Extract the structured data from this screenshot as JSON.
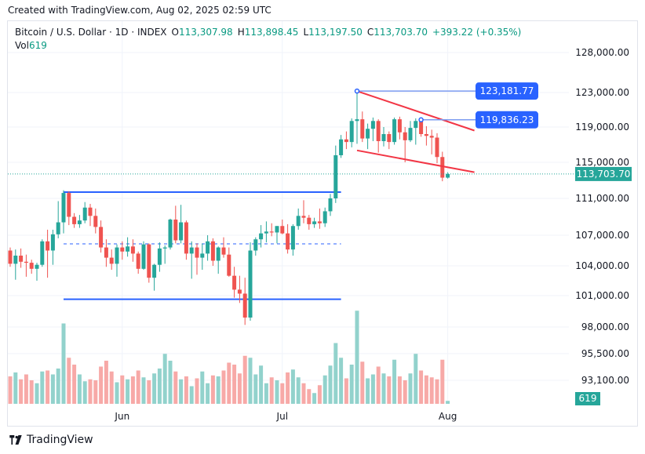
{
  "caption": "Created with TradingView.com, Aug 02, 2025 02:59 UTC",
  "legend": {
    "symbol": "Bitcoin / U.S. Dollar · 1D · INDEX",
    "open_label": "O",
    "open": "113,307.98",
    "high_label": "H",
    "high": "113,898.45",
    "low_label": "L",
    "low": "113,197.50",
    "close_label": "C",
    "close": "113,703.70",
    "change": "+393.22 (+0.35%)",
    "vol_label": "Vol",
    "vol": "619"
  },
  "brand": "TradingView",
  "colors": {
    "up": "#26a69a",
    "down": "#ef5350",
    "vol_up": "#92d2cc",
    "vol_down": "#f7a9a7",
    "trend": "#f23645",
    "level": "#2962ff",
    "callout": "#2962ff"
  },
  "chart_data": {
    "type": "candlestick",
    "y_ticks": [
      "128,000.00",
      "123,000.00",
      "119,000.00",
      "115,000.00",
      "111,000.00",
      "107,000.00",
      "104,000.00",
      "101,000.00",
      "98,000.00",
      "95,500.00",
      "93,100.00"
    ],
    "y_tick_values": [
      128000,
      123000,
      119000,
      115000,
      111000,
      107000,
      104000,
      101000,
      98000,
      95500,
      93100
    ],
    "x_labels": [
      {
        "label": "Jun",
        "index": 21
      },
      {
        "label": "Jul",
        "index": 51
      },
      {
        "label": "Aug",
        "index": 82
      }
    ],
    "last_price_label": "113,703.70",
    "last_price": 113703.7,
    "volume_label": "619",
    "candles": [
      [
        105500,
        105800,
        103900,
        104200
      ],
      [
        104200,
        105600,
        102600,
        105000
      ],
      [
        105000,
        105700,
        103800,
        104400
      ],
      [
        104400,
        105100,
        102900,
        104300
      ],
      [
        104300,
        104600,
        103200,
        103700
      ],
      [
        103700,
        104300,
        102500,
        104100
      ],
      [
        104100,
        106600,
        103900,
        106400
      ],
      [
        106400,
        107600,
        102800,
        105500
      ],
      [
        105500,
        107600,
        104100,
        107100
      ],
      [
        107100,
        110700,
        106700,
        108400
      ],
      [
        108400,
        111900,
        107200,
        111600
      ],
      [
        111600,
        111800,
        108100,
        109000
      ],
      [
        109000,
        109400,
        107800,
        108200
      ],
      [
        108200,
        109200,
        107800,
        108600
      ],
      [
        108600,
        110600,
        108300,
        110000
      ],
      [
        110000,
        110400,
        108000,
        109100
      ],
      [
        109100,
        109900,
        107200,
        107900
      ],
      [
        107900,
        108600,
        105300,
        105800
      ],
      [
        105800,
        106600,
        103900,
        104800
      ],
      [
        104800,
        105600,
        103600,
        104200
      ],
      [
        104200,
        106100,
        102900,
        105800
      ],
      [
        105800,
        106400,
        104600,
        105400
      ],
      [
        105400,
        106800,
        104900,
        105900
      ],
      [
        105900,
        106600,
        104400,
        105200
      ],
      [
        105200,
        105400,
        103200,
        103700
      ],
      [
        103700,
        106400,
        103600,
        106100
      ],
      [
        106100,
        106200,
        102300,
        102800
      ],
      [
        102800,
        104200,
        101500,
        104100
      ],
      [
        104100,
        106300,
        103400,
        105700
      ],
      [
        105700,
        106000,
        104200,
        105800
      ],
      [
        105800,
        108800,
        105600,
        108700
      ],
      [
        108700,
        110200,
        106200,
        106500
      ],
      [
        106500,
        110300,
        106200,
        108400
      ],
      [
        108400,
        108600,
        104600,
        105200
      ],
      [
        105200,
        106400,
        102700,
        105800
      ],
      [
        105800,
        106200,
        103100,
        104800
      ],
      [
        104800,
        106200,
        103600,
        105200
      ],
      [
        105200,
        107000,
        104500,
        106400
      ],
      [
        106400,
        106700,
        104000,
        104500
      ],
      [
        104500,
        105900,
        103200,
        105800
      ],
      [
        105800,
        106800,
        104800,
        105100
      ],
      [
        105100,
        105800,
        102900,
        103000
      ],
      [
        103000,
        103900,
        100800,
        101600
      ],
      [
        101600,
        103000,
        100300,
        101200
      ],
      [
        101200,
        102800,
        98200,
        98900
      ],
      [
        98900,
        106300,
        98600,
        105500
      ],
      [
        105500,
        106800,
        105000,
        106600
      ],
      [
        106600,
        108100,
        105800,
        107200
      ],
      [
        107200,
        108500,
        106300,
        107400
      ],
      [
        107400,
        108300,
        106900,
        107300
      ],
      [
        107300,
        108000,
        106200,
        108000
      ],
      [
        108000,
        108700,
        107100,
        107200
      ],
      [
        107200,
        108200,
        105200,
        105600
      ],
      [
        105600,
        108200,
        105000,
        108000
      ],
      [
        108000,
        109900,
        107600,
        109100
      ],
      [
        109100,
        110800,
        108300,
        108900
      ],
      [
        108900,
        109200,
        107600,
        108200
      ],
      [
        108200,
        108900,
        107800,
        108500
      ],
      [
        108500,
        109900,
        107700,
        108300
      ],
      [
        108300,
        110000,
        107900,
        109600
      ],
      [
        109600,
        111500,
        109100,
        111000
      ],
      [
        111000,
        116900,
        110500,
        115800
      ],
      [
        115800,
        118100,
        115500,
        117600
      ],
      [
        117600,
        118500,
        116500,
        117300
      ],
      [
        117300,
        120000,
        116700,
        119700
      ],
      [
        119700,
        123180,
        117100,
        119900
      ],
      [
        119900,
        120800,
        117300,
        117700
      ],
      [
        117700,
        119400,
        116500,
        118800
      ],
      [
        118800,
        120100,
        117400,
        119700
      ],
      [
        119700,
        119900,
        116100,
        117400
      ],
      [
        117400,
        119000,
        116800,
        118200
      ],
      [
        118200,
        118500,
        116500,
        117300
      ],
      [
        117300,
        120100,
        117000,
        119900
      ],
      [
        119900,
        120200,
        117600,
        118400
      ],
      [
        118400,
        119000,
        115000,
        117500
      ],
      [
        117500,
        119700,
        117300,
        118900
      ],
      [
        118900,
        120000,
        117000,
        119700
      ],
      [
        119700,
        119836,
        117900,
        118200
      ],
      [
        118200,
        119100,
        116900,
        118000
      ],
      [
        118000,
        118700,
        115900,
        117800
      ],
      [
        117800,
        118300,
        114900,
        115600
      ],
      [
        115600,
        116200,
        112900,
        113300
      ],
      [
        113300,
        113898,
        113197,
        113703
      ]
    ],
    "volumes": [
      0.28,
      0.32,
      0.25,
      0.3,
      0.24,
      0.21,
      0.33,
      0.34,
      0.3,
      0.36,
      0.82,
      0.47,
      0.4,
      0.3,
      0.23,
      0.25,
      0.24,
      0.38,
      0.44,
      0.33,
      0.22,
      0.29,
      0.25,
      0.28,
      0.34,
      0.27,
      0.24,
      0.31,
      0.36,
      0.51,
      0.44,
      0.33,
      0.25,
      0.28,
      0.18,
      0.26,
      0.33,
      0.21,
      0.29,
      0.28,
      0.34,
      0.42,
      0.4,
      0.31,
      0.49,
      0.47,
      0.3,
      0.39,
      0.21,
      0.27,
      0.24,
      0.21,
      0.32,
      0.35,
      0.27,
      0.21,
      0.15,
      0.11,
      0.19,
      0.29,
      0.39,
      0.62,
      0.47,
      0.26,
      0.4,
      0.95,
      0.43,
      0.26,
      0.3,
      0.38,
      0.31,
      0.28,
      0.45,
      0.28,
      0.24,
      0.31,
      0.51,
      0.34,
      0.29,
      0.27,
      0.25,
      0.45,
      0.03
    ],
    "annotations": {
      "callouts": [
        {
          "label": "123,181.77",
          "price": 123181.77,
          "from_index": 65
        },
        {
          "label": "119,836.23",
          "price": 119836.23,
          "from_index": 77
        }
      ],
      "wedge_upper": [
        [
          65,
          123181.77
        ],
        [
          87,
          118600
        ]
      ],
      "wedge_lower": [
        [
          65,
          116350
        ],
        [
          87,
          113900
        ]
      ],
      "range_top": [
        [
          10,
          111700
        ],
        [
          62,
          111700
        ]
      ],
      "range_bottom": [
        [
          10,
          100650
        ],
        [
          62,
          100650
        ]
      ],
      "range_mid": [
        [
          10,
          106150
        ],
        [
          62,
          106150
        ]
      ]
    }
  }
}
